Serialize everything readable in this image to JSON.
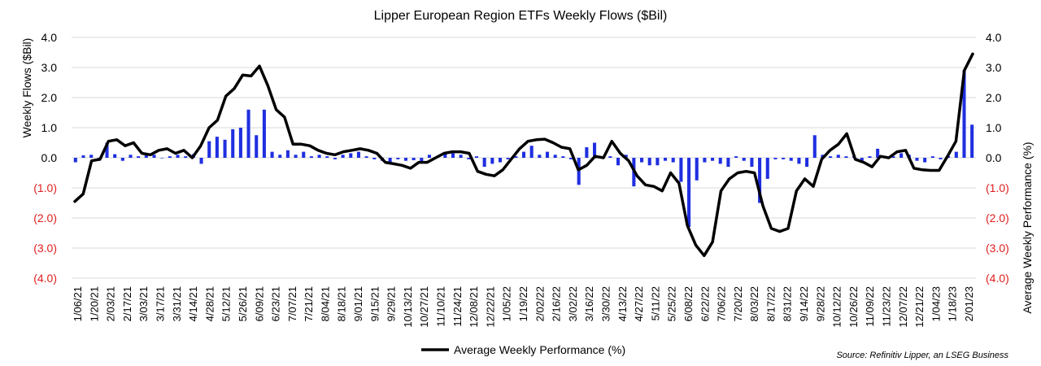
{
  "chart_data": {
    "type": "bar+line",
    "title": "Lipper European Region ETFs Weekly Flows ($Bil)",
    "ylabel_left": "Weekly Flows ($Bil)",
    "ylabel_right": "Average Weekly Performance (%)",
    "ylim": [
      -4,
      4
    ],
    "y_ticks_left": [
      "4.0",
      "3.0",
      "2.0",
      "1.0",
      "0.0",
      "(1.0)",
      "(2.0)",
      "(3.0)",
      "(4.0)"
    ],
    "y_ticks_right": [
      "4.0",
      "3.0",
      "2.0",
      "1.0",
      "0.0",
      "(1.0)",
      "(2.0)",
      "(3.0)",
      "(4.0)"
    ],
    "y_tick_values": [
      4,
      3,
      2,
      1,
      0,
      -1,
      -2,
      -3,
      -4
    ],
    "grid": true,
    "legend": {
      "position": "bottom-center",
      "entries": [
        "Average Weekly Performance (%)"
      ]
    },
    "source": "Source: Refinitiv Lipper, an LSEG Business",
    "x_tick_labels": [
      "1/06/21",
      "1/20/21",
      "2/03/21",
      "2/17/21",
      "3/03/21",
      "3/17/21",
      "3/31/21",
      "4/14/21",
      "4/28/21",
      "5/12/21",
      "5/26/21",
      "6/09/21",
      "6/23/21",
      "7/07/21",
      "7/21/21",
      "8/04/21",
      "8/18/21",
      "9/01/21",
      "9/15/21",
      "9/29/21",
      "10/13/21",
      "10/27/21",
      "11/10/21",
      "11/24/21",
      "12/08/21",
      "12/22/21",
      "1/05/22",
      "1/19/22",
      "2/02/22",
      "2/16/22",
      "3/02/22",
      "3/16/22",
      "3/30/22",
      "4/13/22",
      "4/27/22",
      "5/11/22",
      "5/25/22",
      "6/08/22",
      "6/22/22",
      "7/06/22",
      "7/20/22",
      "8/03/22",
      "8/17/22",
      "8/31/22",
      "9/14/22",
      "9/28/22",
      "10/12/22",
      "10/26/22",
      "11/09/22",
      "11/23/22",
      "12/07/22",
      "12/21/22",
      "1/04/23",
      "1/18/23",
      "2/01/23"
    ],
    "series": [
      {
        "name": "Weekly Flows",
        "type": "bar",
        "color": "#1f2fe0",
        "values": [
          -0.15,
          0.08,
          0.1,
          -0.1,
          0.5,
          0.12,
          -0.1,
          0.1,
          0.05,
          0.15,
          0.1,
          0.0,
          0.05,
          0.1,
          0.05,
          0.12,
          -0.2,
          0.55,
          0.7,
          0.6,
          0.95,
          1.0,
          1.6,
          0.75,
          1.6,
          0.2,
          0.1,
          0.25,
          0.1,
          0.2,
          0.05,
          0.1,
          0.05,
          -0.05,
          0.1,
          0.15,
          0.2,
          0.05,
          -0.05,
          -0.1,
          -0.2,
          -0.05,
          -0.1,
          -0.08,
          -0.15,
          0.1,
          0.05,
          0.15,
          0.15,
          0.1,
          -0.05,
          0.05,
          -0.3,
          -0.2,
          -0.15,
          -0.05,
          0.05,
          0.2,
          0.4,
          0.1,
          0.2,
          0.1,
          0.05,
          -0.05,
          -0.9,
          0.35,
          0.5,
          0.05,
          0.05,
          -0.25,
          0.1,
          -0.95,
          -0.15,
          -0.25,
          -0.25,
          -0.1,
          -0.15,
          -0.8,
          -2.3,
          -0.75,
          -0.15,
          -0.1,
          -0.2,
          -0.3,
          0.05,
          -0.1,
          -0.3,
          -1.5,
          -0.7,
          -0.05,
          -0.05,
          -0.1,
          -0.2,
          -0.3,
          0.75,
          0.1,
          0.05,
          0.1,
          0.05,
          0.05,
          -0.1,
          0.05,
          0.3,
          0.05,
          0.05,
          0.15,
          0.1,
          -0.1,
          -0.15,
          0.05,
          -0.05,
          0.05,
          0.2,
          2.9,
          1.1
        ]
      },
      {
        "name": "Average Weekly Performance (%)",
        "type": "line",
        "color": "#000000",
        "values": [
          -1.45,
          -1.2,
          -0.1,
          -0.05,
          0.55,
          0.6,
          0.4,
          0.5,
          0.15,
          0.1,
          0.25,
          0.3,
          0.15,
          0.25,
          0.0,
          0.4,
          1.0,
          1.25,
          2.05,
          2.3,
          2.75,
          2.72,
          3.05,
          2.4,
          1.6,
          1.35,
          0.45,
          0.45,
          0.4,
          0.25,
          0.15,
          0.1,
          0.2,
          0.25,
          0.3,
          0.25,
          0.15,
          -0.15,
          -0.2,
          -0.25,
          -0.35,
          -0.15,
          -0.15,
          0.0,
          0.15,
          0.2,
          0.2,
          0.15,
          -0.45,
          -0.55,
          -0.6,
          -0.4,
          -0.05,
          0.3,
          0.55,
          0.6,
          0.62,
          0.5,
          0.35,
          0.3,
          -0.4,
          -0.25,
          0.05,
          0.0,
          0.55,
          0.15,
          -0.1,
          -0.6,
          -0.9,
          -0.95,
          -1.1,
          -0.5,
          -0.85,
          -2.25,
          -2.9,
          -3.25,
          -2.8,
          -1.1,
          -0.7,
          -0.5,
          -0.45,
          -0.5,
          -1.6,
          -2.35,
          -2.45,
          -2.35,
          -1.1,
          -0.7,
          -0.95,
          -0.05,
          0.25,
          0.45,
          0.8,
          -0.05,
          -0.15,
          -0.3,
          0.05,
          0.0,
          0.2,
          0.25,
          -0.35,
          -0.4,
          -0.42,
          -0.42,
          0.05,
          0.55,
          2.9,
          3.45
        ]
      }
    ]
  }
}
